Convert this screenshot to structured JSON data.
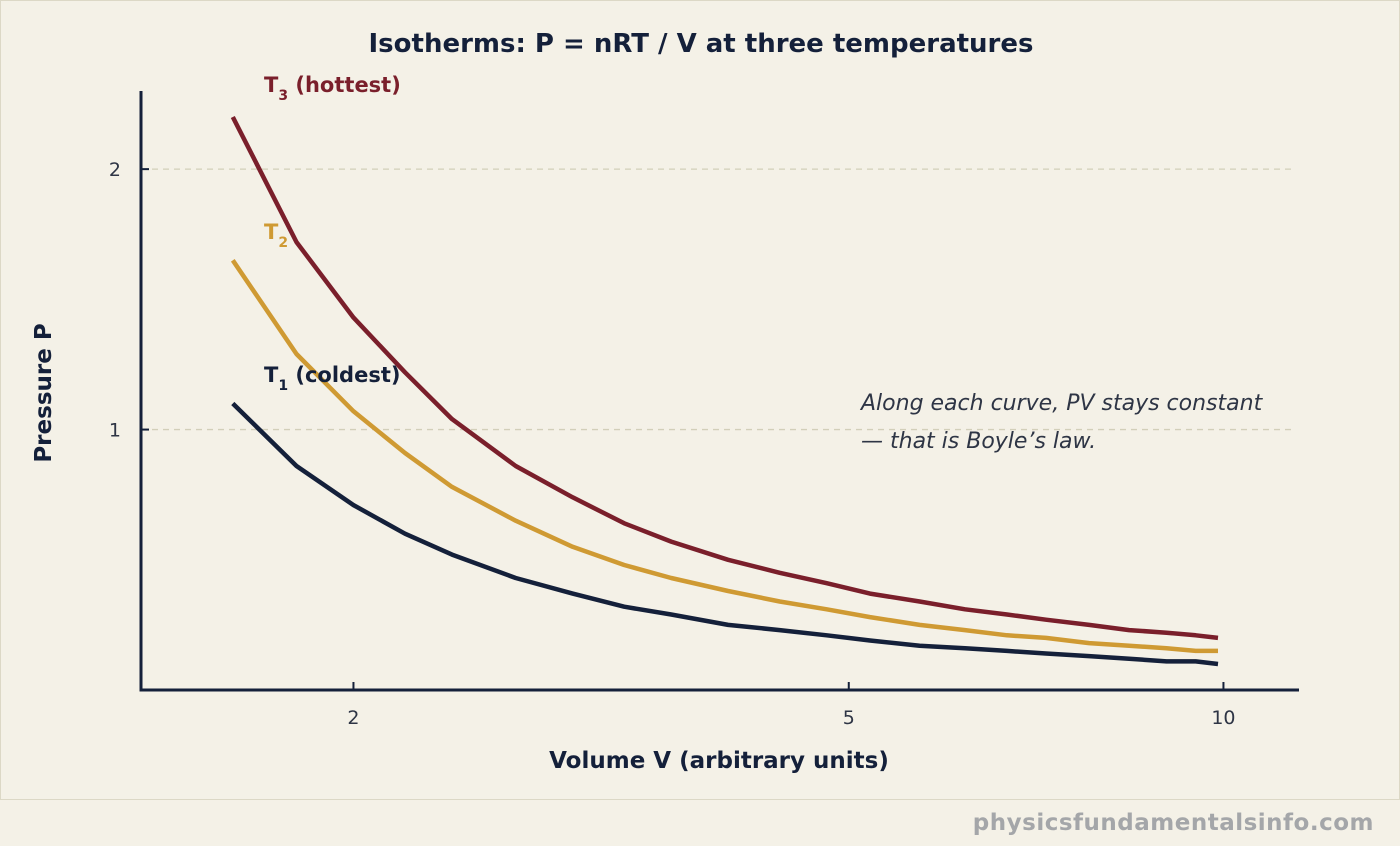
{
  "colors": {
    "background": "#f4f1e7",
    "axis": "#14203a",
    "grid": "#d2cfb9",
    "t1": "#14203a",
    "t2": "#cf9a33",
    "t3": "#7a1f2b"
  },
  "watermark": "physicsfundamentalsinfo.com",
  "chart_data": {
    "type": "line",
    "title": "Isotherms: P = nRT / V at three temperatures",
    "xlabel": "Volume V (arbitrary units)",
    "ylabel": "Pressure P",
    "x_scale": "log",
    "xlim": [
      1.35,
      11.5
    ],
    "ylim": [
      0,
      2.3
    ],
    "x_ticks": [
      2,
      5,
      10
    ],
    "x_tick_labels": [
      "2",
      "5",
      "10"
    ],
    "y_ticks": [
      1,
      2
    ],
    "y_tick_labels": [
      "1",
      "2"
    ],
    "grid": "horizontal dashed",
    "x": [
      1.6,
      1.8,
      2.0,
      2.2,
      2.4,
      2.7,
      3.0,
      3.3,
      3.6,
      4.0,
      4.4,
      4.8,
      5.2,
      5.7,
      6.2,
      6.7,
      7.2,
      7.8,
      8.4,
      9.0,
      9.5,
      9.9
    ],
    "series": [
      {
        "key": "t1",
        "name": "T",
        "subscript": "1",
        "suffix": "(coldest)",
        "values": [
          1.1,
          0.86,
          0.71,
          0.6,
          0.52,
          0.43,
          0.37,
          0.32,
          0.29,
          0.25,
          0.23,
          0.21,
          0.19,
          0.17,
          0.16,
          0.15,
          0.14,
          0.13,
          0.12,
          0.11,
          0.11,
          0.1
        ]
      },
      {
        "key": "t2",
        "name": "T",
        "subscript": "2",
        "suffix": "",
        "values": [
          1.65,
          1.29,
          1.07,
          0.91,
          0.78,
          0.65,
          0.55,
          0.48,
          0.43,
          0.38,
          0.34,
          0.31,
          0.28,
          0.25,
          0.23,
          0.21,
          0.2,
          0.18,
          0.17,
          0.16,
          0.15,
          0.15
        ]
      },
      {
        "key": "t3",
        "name": "T",
        "subscript": "3",
        "suffix": "(hottest)",
        "values": [
          2.2,
          1.72,
          1.43,
          1.22,
          1.04,
          0.86,
          0.74,
          0.64,
          0.57,
          0.5,
          0.45,
          0.41,
          0.37,
          0.34,
          0.31,
          0.29,
          0.27,
          0.25,
          0.23,
          0.22,
          0.21,
          0.2
        ]
      }
    ],
    "annotation": [
      "Along each curve, PV stays constant",
      "— that is Boyle’s law."
    ]
  }
}
